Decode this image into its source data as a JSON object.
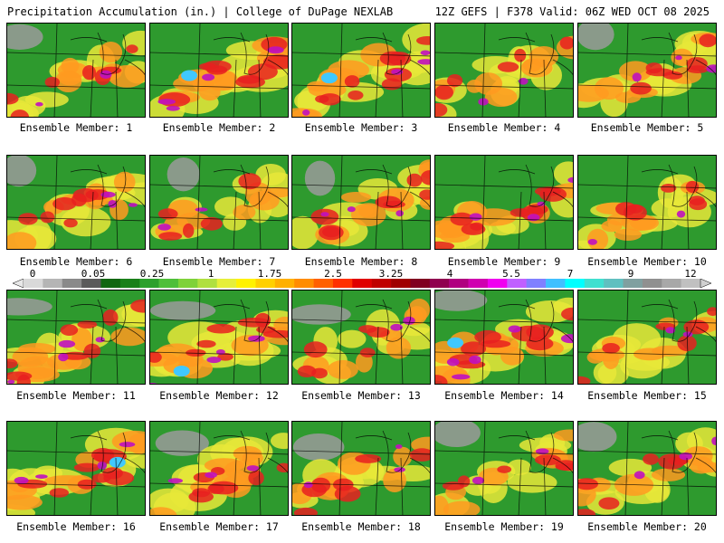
{
  "header": {
    "left_title": "Precipitation Accumulation (in.) | College of DuPage NEXLAB",
    "right_title": "12Z GEFS | F378 Valid: 06Z WED OCT 08 2025"
  },
  "colorbar": {
    "tick_labels": [
      "0",
      "0.05",
      "0.25",
      "1",
      "1.75",
      "2.5",
      "3.25",
      "4",
      "5.5",
      "7",
      "9",
      "12"
    ],
    "colors": [
      "#d9d9d9",
      "#b5b5b5",
      "#8a8a8a",
      "#5a5a5a",
      "#116611",
      "#1a801a",
      "#2ca02c",
      "#4fbf3a",
      "#7fd23a",
      "#b0e040",
      "#e6ef3a",
      "#fff200",
      "#ffd000",
      "#ffb000",
      "#ff8c00",
      "#ff6000",
      "#ff3000",
      "#e00000",
      "#c00000",
      "#a00000",
      "#800020",
      "#900050",
      "#b00080",
      "#d000b0",
      "#f000f0",
      "#c060ff",
      "#8080ff",
      "#40c0ff",
      "#00ffff",
      "#40e0d0",
      "#60c0c0",
      "#80a0a0",
      "#909090",
      "#a8a8a8",
      "#c0c0c0"
    ]
  },
  "panels": [
    {
      "label": "Ensemble Member: 1",
      "intensity": 0.45
    },
    {
      "label": "Ensemble Member: 2",
      "intensity": 0.8
    },
    {
      "label": "Ensemble Member: 3",
      "intensity": 0.75
    },
    {
      "label": "Ensemble Member: 4",
      "intensity": 0.35
    },
    {
      "label": "Ensemble Member: 5",
      "intensity": 0.5
    },
    {
      "label": "Ensemble Member: 6",
      "intensity": 0.55
    },
    {
      "label": "Ensemble Member: 7",
      "intensity": 0.3
    },
    {
      "label": "Ensemble Member: 8",
      "intensity": 0.6
    },
    {
      "label": "Ensemble Member: 9",
      "intensity": 0.7
    },
    {
      "label": "Ensemble Member: 10",
      "intensity": 0.45
    },
    {
      "label": "Ensemble Member: 11",
      "intensity": 0.7
    },
    {
      "label": "Ensemble Member: 12",
      "intensity": 0.8
    },
    {
      "label": "Ensemble Member: 13",
      "intensity": 0.35
    },
    {
      "label": "Ensemble Member: 14",
      "intensity": 0.9
    },
    {
      "label": "Ensemble Member: 15",
      "intensity": 0.4
    },
    {
      "label": "Ensemble Member: 16",
      "intensity": 0.8
    },
    {
      "label": "Ensemble Member: 17",
      "intensity": 0.6
    },
    {
      "label": "Ensemble Member: 18",
      "intensity": 0.5
    },
    {
      "label": "Ensemble Member: 19",
      "intensity": 0.4
    },
    {
      "label": "Ensemble Member: 20",
      "intensity": 0.55
    }
  ]
}
